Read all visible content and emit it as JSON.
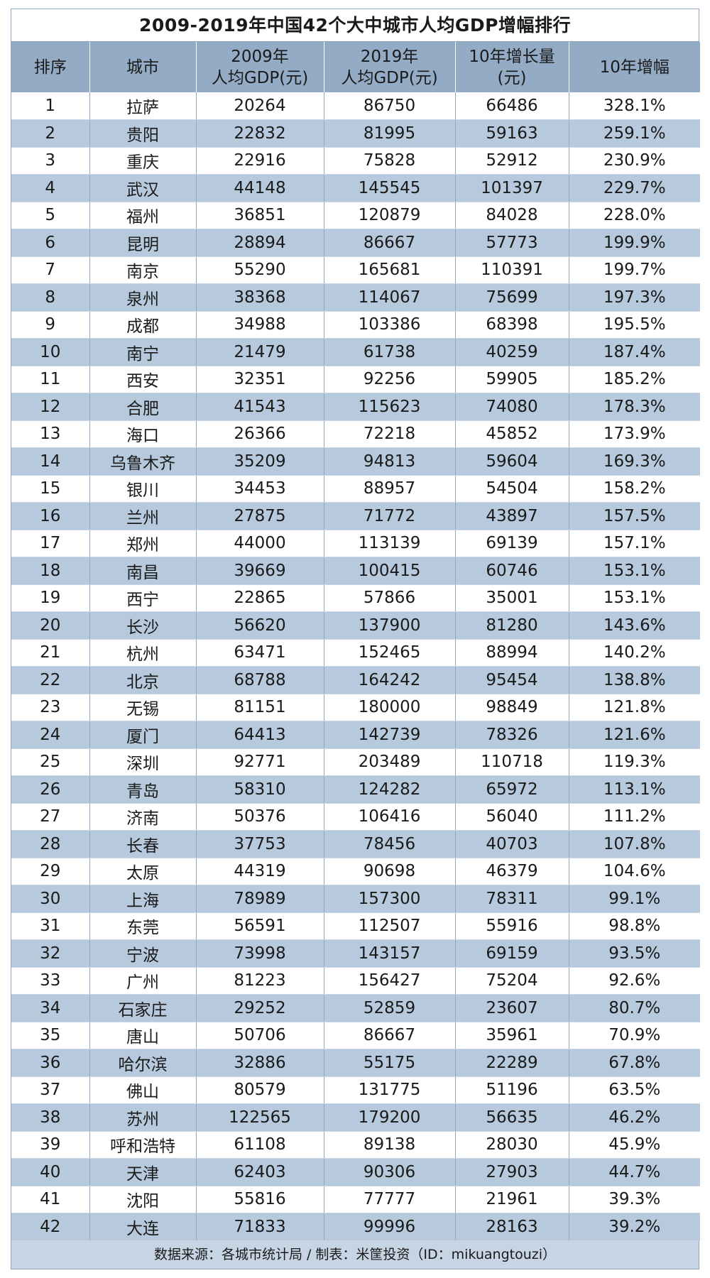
{
  "title": "2009-2019年中国42个大中城市人均GDP增幅排行",
  "headers": {
    "rank": "排序",
    "city": "城市",
    "gdp2009_line1": "2009年",
    "gdp2009_line2": "人均GDP(元)",
    "gdp2019_line1": "2019年",
    "gdp2019_line2": "人均GDP(元)",
    "increase_line1": "10年增长量",
    "increase_line2": "(元)",
    "growth": "10年增幅"
  },
  "rows": [
    [
      "1",
      "拉萨",
      "20264",
      "86750",
      "66486",
      "328.1%"
    ],
    [
      "2",
      "贵阳",
      "22832",
      "81995",
      "59163",
      "259.1%"
    ],
    [
      "3",
      "重庆",
      "22916",
      "75828",
      "52912",
      "230.9%"
    ],
    [
      "4",
      "武汉",
      "44148",
      "145545",
      "101397",
      "229.7%"
    ],
    [
      "5",
      "福州",
      "36851",
      "120879",
      "84028",
      "228.0%"
    ],
    [
      "6",
      "昆明",
      "28894",
      "86667",
      "57773",
      "199.9%"
    ],
    [
      "7",
      "南京",
      "55290",
      "165681",
      "110391",
      "199.7%"
    ],
    [
      "8",
      "泉州",
      "38368",
      "114067",
      "75699",
      "197.3%"
    ],
    [
      "9",
      "成都",
      "34988",
      "103386",
      "68398",
      "195.5%"
    ],
    [
      "10",
      "南宁",
      "21479",
      "61738",
      "40259",
      "187.4%"
    ],
    [
      "11",
      "西安",
      "32351",
      "92256",
      "59905",
      "185.2%"
    ],
    [
      "12",
      "合肥",
      "41543",
      "115623",
      "74080",
      "178.3%"
    ],
    [
      "13",
      "海口",
      "26366",
      "72218",
      "45852",
      "173.9%"
    ],
    [
      "14",
      "乌鲁木齐",
      "35209",
      "94813",
      "59604",
      "169.3%"
    ],
    [
      "15",
      "银川",
      "34453",
      "88957",
      "54504",
      "158.2%"
    ],
    [
      "16",
      "兰州",
      "27875",
      "71772",
      "43897",
      "157.5%"
    ],
    [
      "17",
      "郑州",
      "44000",
      "113139",
      "69139",
      "157.1%"
    ],
    [
      "18",
      "南昌",
      "39669",
      "100415",
      "60746",
      "153.1%"
    ],
    [
      "19",
      "西宁",
      "22865",
      "57866",
      "35001",
      "153.1%"
    ],
    [
      "20",
      "长沙",
      "56620",
      "137900",
      "81280",
      "143.6%"
    ],
    [
      "21",
      "杭州",
      "63471",
      "152465",
      "88994",
      "140.2%"
    ],
    [
      "22",
      "北京",
      "68788",
      "164242",
      "95454",
      "138.8%"
    ],
    [
      "23",
      "无锡",
      "81151",
      "180000",
      "98849",
      "121.8%"
    ],
    [
      "24",
      "厦门",
      "64413",
      "142739",
      "78326",
      "121.6%"
    ],
    [
      "25",
      "深圳",
      "92771",
      "203489",
      "110718",
      "119.3%"
    ],
    [
      "26",
      "青岛",
      "58310",
      "124282",
      "65972",
      "113.1%"
    ],
    [
      "27",
      "济南",
      "50376",
      "106416",
      "56040",
      "111.2%"
    ],
    [
      "28",
      "长春",
      "37753",
      "78456",
      "40703",
      "107.8%"
    ],
    [
      "29",
      "太原",
      "44319",
      "90698",
      "46379",
      "104.6%"
    ],
    [
      "30",
      "上海",
      "78989",
      "157300",
      "78311",
      "99.1%"
    ],
    [
      "31",
      "东莞",
      "56591",
      "112507",
      "55916",
      "98.8%"
    ],
    [
      "32",
      "宁波",
      "73998",
      "143157",
      "69159",
      "93.5%"
    ],
    [
      "33",
      "广州",
      "81223",
      "156427",
      "75204",
      "92.6%"
    ],
    [
      "34",
      "石家庄",
      "29252",
      "52859",
      "23607",
      "80.7%"
    ],
    [
      "35",
      "唐山",
      "50706",
      "86667",
      "35961",
      "70.9%"
    ],
    [
      "36",
      "哈尔滨",
      "32886",
      "55175",
      "22289",
      "67.8%"
    ],
    [
      "37",
      "佛山",
      "80579",
      "131775",
      "51196",
      "63.5%"
    ],
    [
      "38",
      "苏州",
      "122565",
      "179200",
      "56635",
      "46.2%"
    ],
    [
      "39",
      "呼和浩特",
      "61108",
      "89138",
      "28030",
      "45.9%"
    ],
    [
      "40",
      "天津",
      "62403",
      "90306",
      "27903",
      "44.7%"
    ],
    [
      "41",
      "沈阳",
      "55816",
      "77777",
      "21961",
      "39.3%"
    ],
    [
      "42",
      "大连",
      "71833",
      "99996",
      "28163",
      "39.2%"
    ]
  ],
  "footer": "数据来源：各城市统计局 / 制表：米筐投资（ID：mikuangtouzi）"
}
